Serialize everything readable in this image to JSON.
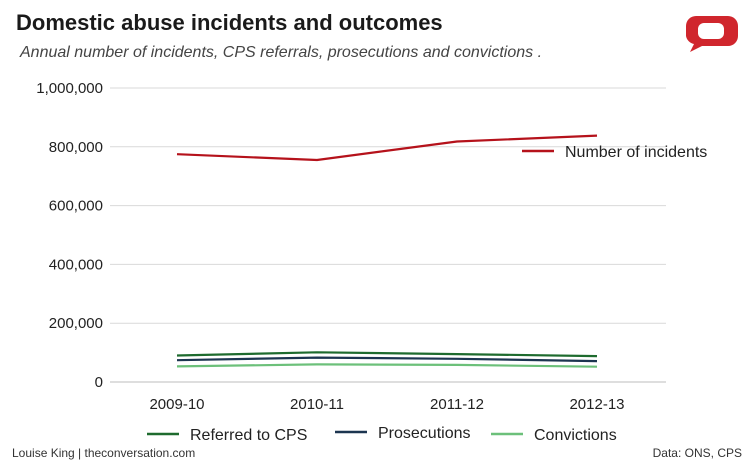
{
  "header": {
    "title": "Domestic abuse incidents and outcomes",
    "subtitle": "Annual number of incidents, CPS referrals, prosecutions and convictions ."
  },
  "footer": {
    "credit": "Louise King | theconversation.com",
    "source": "Data: ONS, CPS"
  },
  "logo": {
    "icon": "speech-bubble-logo-icon",
    "color": "#d0262d"
  },
  "chart_data": {
    "type": "line",
    "categories": [
      "2009-10",
      "2010-11",
      "2011-12",
      "2012-13"
    ],
    "ylim": [
      0,
      1000000
    ],
    "yticks": [
      0,
      200000,
      400000,
      600000,
      800000,
      1000000
    ],
    "ytick_labels": [
      "0",
      "200,000",
      "400,000",
      "600,000",
      "800,000",
      "1,000,000"
    ],
    "grid": true,
    "series": [
      {
        "name": "Number of incidents",
        "color": "#b5121b",
        "values": [
          775000,
          755000,
          818000,
          838000
        ]
      },
      {
        "name": "Referred to CPS",
        "color": "#1e6b2e",
        "values": [
          90000,
          101000,
          95000,
          88000
        ]
      },
      {
        "name": "Prosecutions",
        "color": "#1c3550",
        "values": [
          74000,
          83000,
          79000,
          71000
        ]
      },
      {
        "name": "Convictions",
        "color": "#6cc07a",
        "values": [
          53000,
          60000,
          58000,
          52000
        ]
      }
    ]
  }
}
